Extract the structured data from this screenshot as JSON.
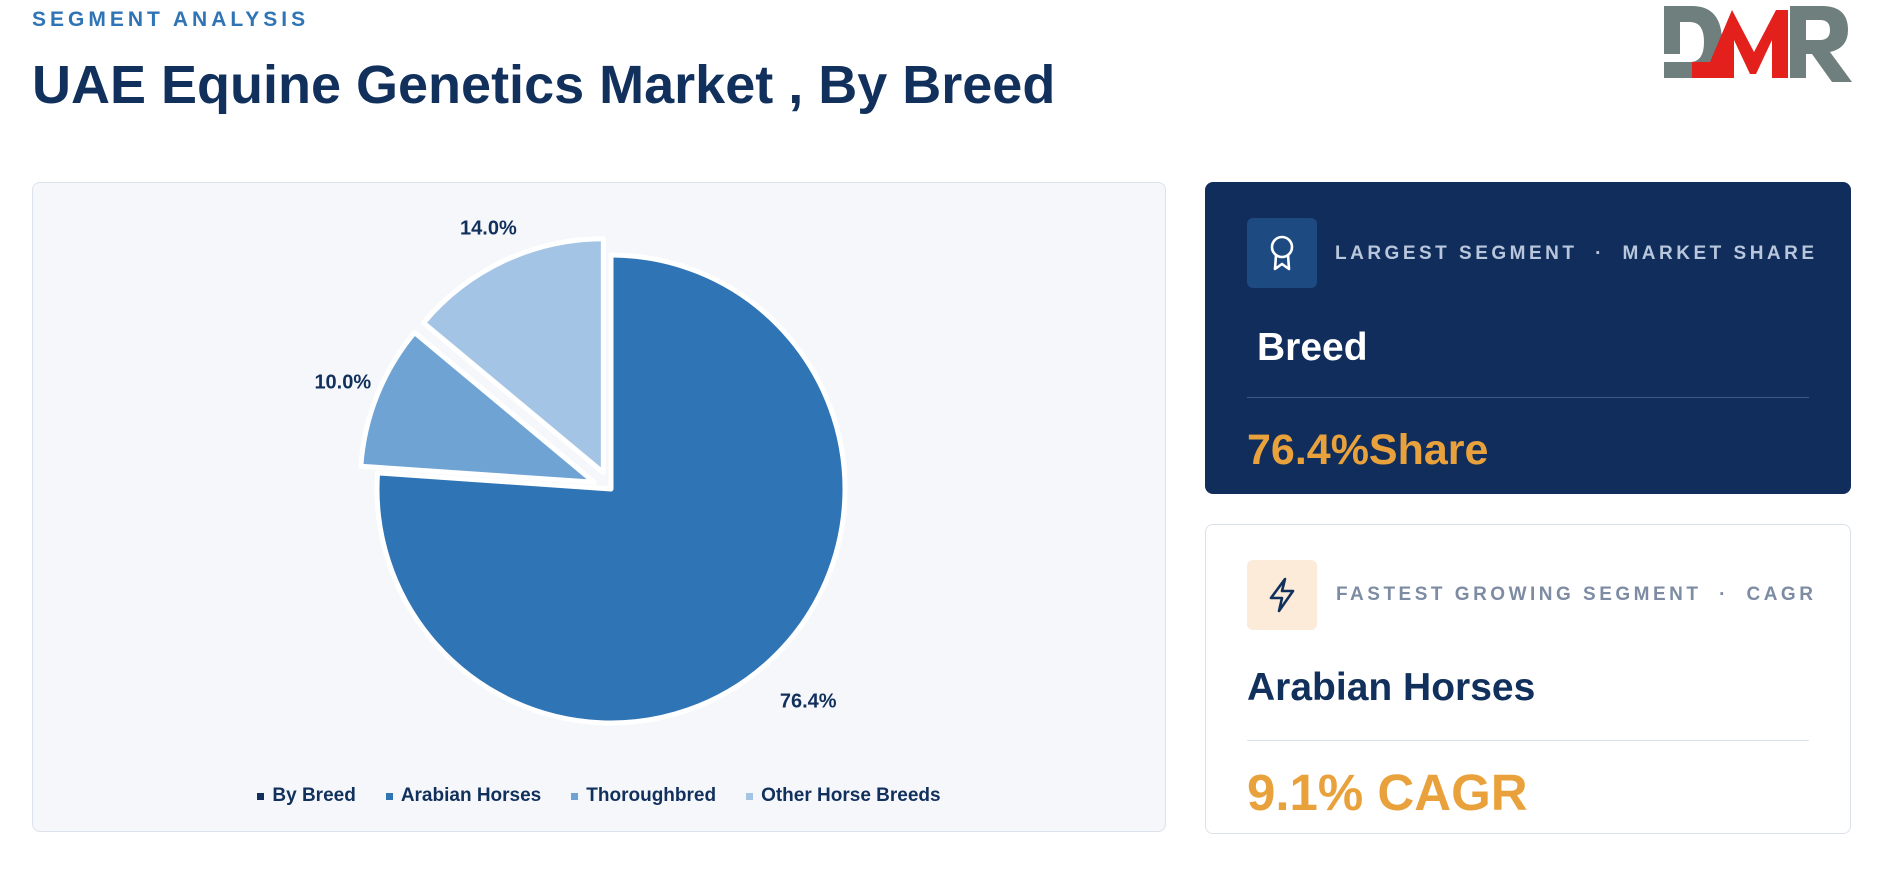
{
  "header": {
    "eyebrow": "SEGMENT ANALYSIS",
    "title": "UAE Equine Genetics Market , By Breed"
  },
  "logo": {
    "text": "DMR",
    "colors": {
      "d": "#6f7f7d",
      "m": "#e3201b",
      "r": "#6f7f7d"
    }
  },
  "chart_data": {
    "type": "pie",
    "categories": [
      "Arabian Horses",
      "Thoroughbred",
      "Other Horse Breeds"
    ],
    "values": [
      76.4,
      10.0,
      14.0
    ],
    "value_labels": [
      "76.4%",
      "10.0%",
      "14.0%"
    ],
    "colors": [
      "#2f74b5",
      "#6ea3d4",
      "#a3c4e5"
    ],
    "exploded": [
      false,
      true,
      true
    ],
    "legend": [
      {
        "label": "By Breed",
        "color": "#11305c"
      },
      {
        "label": "Arabian Horses",
        "color": "#2f74b5"
      },
      {
        "label": "Thoroughbred",
        "color": "#6ea3d4"
      },
      {
        "label": "Other Horse Breeds",
        "color": "#a3c4e5"
      }
    ],
    "legend_position": "bottom"
  },
  "largest": {
    "icon": "award-ribbon-icon",
    "label": "LARGEST SEGMENT",
    "separator": "·",
    "metric": "MARKET SHARE",
    "value": "Breed",
    "stat": "76.4%Share"
  },
  "fastest": {
    "icon": "lightning-bolt-icon",
    "label": "FASTEST GROWING SEGMENT",
    "separator": "·",
    "metric": "CAGR",
    "value": "Arabian Horses",
    "stat": "9.1% CAGR"
  }
}
